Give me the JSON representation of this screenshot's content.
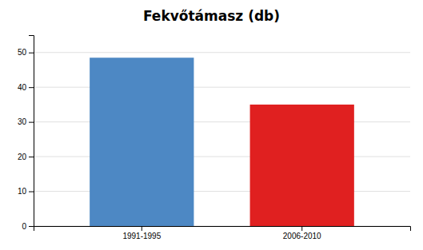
{
  "chart_data": {
    "type": "bar",
    "title": "Fekvőtámasz (db)",
    "categories": [
      "1991-1995",
      "2006-2010"
    ],
    "values": [
      48.5,
      35.0
    ],
    "colors": [
      "#4d88c4",
      "#e02020"
    ],
    "ylim": [
      0,
      55
    ],
    "yticks": [
      0,
      10,
      20,
      30,
      40,
      50
    ],
    "grid": true
  }
}
